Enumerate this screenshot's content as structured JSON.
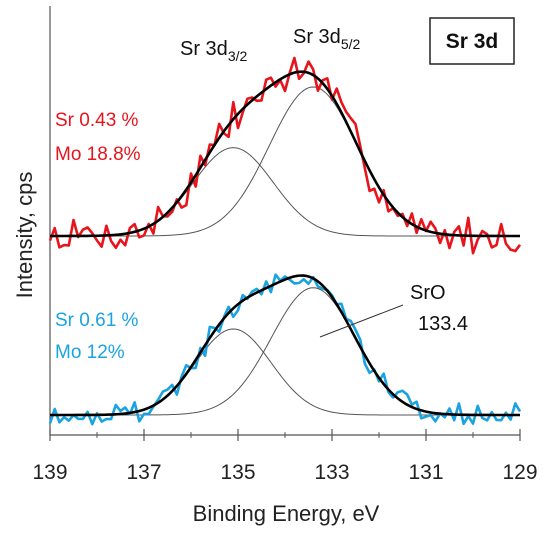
{
  "chart_data": {
    "type": "line",
    "title": "",
    "xlabel": "Binding Energy, eV",
    "ylabel": "Intensity, cps",
    "xlim": [
      139,
      129
    ],
    "x_reversed": true,
    "x_ticks": [
      "139",
      "137",
      "135",
      "133",
      "131",
      "129"
    ],
    "y_tick_labels_shown": false,
    "grid": false,
    "badge": "Sr 3d",
    "peak_labels": {
      "d32": {
        "base": "Sr 3d",
        "sub": "3/2"
      },
      "d52": {
        "base": "Sr 3d",
        "sub": "5/2"
      }
    },
    "annotations": {
      "red_line1": "Sr 0.43 %",
      "red_line2": "Mo 18.8%",
      "blue_line1": "Sr  0.61 %",
      "blue_line2": "Mo 12%",
      "sro_label": "SrO",
      "sro_value": "133.4"
    },
    "colors": {
      "red": "#e8141c",
      "blue": "#1aa3e0",
      "fit": "#000000",
      "component": "#555555"
    },
    "spectra": [
      {
        "color_key": "red",
        "baseline": 0.0,
        "noise": 0.18,
        "seed": 7,
        "components": [
          {
            "center": 135.1,
            "amplitude": 0.96,
            "fwhm": 2.0
          },
          {
            "center": 133.4,
            "amplitude": 1.62,
            "fwhm": 2.2
          }
        ]
      },
      {
        "color_key": "blue",
        "baseline": 0.0,
        "noise": 0.12,
        "seed": 19,
        "components": [
          {
            "center": 135.1,
            "amplitude": 1.0,
            "fwhm": 1.9
          },
          {
            "center": 133.4,
            "amplitude": 1.48,
            "fwhm": 2.1
          }
        ]
      }
    ]
  }
}
